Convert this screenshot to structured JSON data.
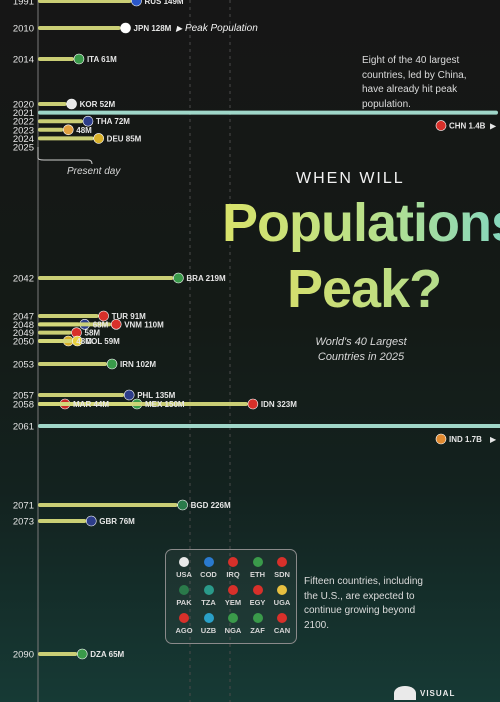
{
  "title": {
    "line1": "WHEN WILL",
    "line2": "Populations",
    "line3": "Peak?"
  },
  "subtitle": "World's 40 Largest Countries in 2025",
  "annotations": {
    "top_right": "Eight of the 40 largest countries, led by China, have already hit peak population.",
    "peak_population": "Peak Population",
    "present_day": "Present day",
    "fifteen": "Fifteen countries, including the U.S., are expected to continue growing beyond 2100."
  },
  "beyond_2100_codes": [
    "USA",
    "COD",
    "IRQ",
    "ETH",
    "SDN",
    "PAK",
    "TZA",
    "YEM",
    "EGY",
    "UGA",
    "AGO",
    "UZB",
    "NGA",
    "ZAF",
    "CAN"
  ],
  "brand": "VISUAL",
  "colors": {
    "bar": "#d4d87a",
    "bar_highlight": "#a6e0d2",
    "background": "#161616",
    "text": "#e8e8e8",
    "accent": "#a6e0d2"
  },
  "chart_data": {
    "type": "bar",
    "orientation": "horizontal",
    "x_axis_label": "Peak year",
    "value_unit": "Peak population",
    "series": [
      {
        "year": 1991,
        "code": "RUS",
        "peak_millions": 149,
        "label": "RUS 149M",
        "flag": "#2a57c9"
      },
      {
        "year": 2010,
        "code": "JPN",
        "peak_millions": 128,
        "label": "JPN 128M",
        "flag": "#ffffff"
      },
      {
        "year": 2014,
        "code": "ITA",
        "peak_millions": 61,
        "label": "ITA 61M",
        "flag": "#3a9a4a"
      },
      {
        "year": 2020,
        "code": "KOR",
        "peak_millions": 52,
        "label": "KOR 52M",
        "flag": "#e8e8e8"
      },
      {
        "year": 2021,
        "code": "CHN",
        "peak_millions": 1400,
        "label": "CHN 1.4B",
        "flag": "#d8302a",
        "highlight": true
      },
      {
        "year": 2022,
        "code": "THA",
        "peak_millions": 72,
        "label": "THA 72M",
        "flag": "#2d3d8a"
      },
      {
        "year": 2023,
        "code": "",
        "peak_millions": 48,
        "label": "48M",
        "flag": "#e0a040"
      },
      {
        "year": 2024,
        "code": "DEU",
        "peak_millions": 85,
        "label": "DEU 85M",
        "flag": "#d8b02a"
      },
      {
        "year": 2042,
        "code": "BRA",
        "peak_millions": 219,
        "label": "BRA 219M",
        "flag": "#3a9a4a"
      },
      {
        "year": 2047,
        "code": "TUR",
        "peak_millions": 91,
        "label": "TUR 91M",
        "flag": "#d8302a"
      },
      {
        "year": 2048,
        "code": "",
        "peak_millions": 68,
        "label": "68M",
        "flag": "#2d3d8a"
      },
      {
        "year": 2048,
        "code": "VNM",
        "peak_millions": 110,
        "label": "VNM 110M",
        "flag": "#d8302a"
      },
      {
        "year": 2049,
        "code": "",
        "peak_millions": 58,
        "label": "58M",
        "flag": "#d8302a"
      },
      {
        "year": 2050,
        "code": "",
        "peak_millions": 48,
        "label": "48M",
        "flag": "#d8b02a"
      },
      {
        "year": 2050,
        "code": "COL",
        "peak_millions": 59,
        "label": "COL 59M",
        "flag": "#e8d040"
      },
      {
        "year": 2053,
        "code": "IRN",
        "peak_millions": 102,
        "label": "IRN 102M",
        "flag": "#3a9a4a"
      },
      {
        "year": 2057,
        "code": "PHL",
        "peak_millions": 135,
        "label": "PHL 135M",
        "flag": "#2d3d8a"
      },
      {
        "year": 2058,
        "code": "MAR",
        "peak_millions": 44,
        "label": "MAR 44M",
        "flag": "#c82a2a"
      },
      {
        "year": 2058,
        "code": "MEX",
        "peak_millions": 150,
        "label": "MEX 150M",
        "flag": "#3a9a4a"
      },
      {
        "year": 2058,
        "code": "IDN",
        "peak_millions": 323,
        "label": "IDN 323M",
        "flag": "#d8302a"
      },
      {
        "year": 2061,
        "code": "IND",
        "peak_millions": 1700,
        "label": "IND 1.7B",
        "flag": "#e08a30",
        "highlight": true
      },
      {
        "year": 2071,
        "code": "BGD",
        "peak_millions": 226,
        "label": "BGD 226M",
        "flag": "#2a7a4a"
      },
      {
        "year": 2073,
        "code": "GBR",
        "peak_millions": 76,
        "label": "GBR 76M",
        "flag": "#2d3d8a"
      },
      {
        "year": 2090,
        "code": "DZA",
        "peak_millions": 65,
        "label": "DZA 65M",
        "flag": "#3a9a4a"
      }
    ],
    "year_labels": [
      "1991",
      "2010",
      "2014",
      "2020",
      "2021",
      "2022",
      "2023",
      "2024",
      "2025",
      "2042",
      "2047",
      "2048",
      "2049",
      "2050",
      "2053",
      "2057",
      "2058",
      "2061",
      "2071",
      "2073",
      "2090"
    ],
    "present_year": 2025
  }
}
